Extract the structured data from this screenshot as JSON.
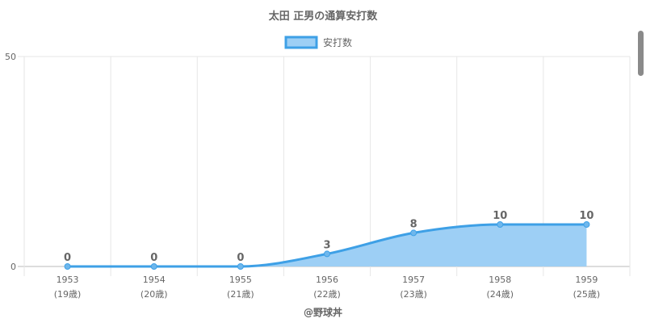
{
  "chart_data": {
    "type": "area",
    "title": "太田 正男の通算安打数",
    "legend": {
      "label": "安打数",
      "position": "top"
    },
    "categories": [
      "1953",
      "1954",
      "1955",
      "1956",
      "1957",
      "1958",
      "1959"
    ],
    "category_sublabels": [
      "(19歳)",
      "(20歳)",
      "(21歳)",
      "(22歳)",
      "(23歳)",
      "(24歳)",
      "(25歳)"
    ],
    "series": [
      {
        "name": "安打数",
        "values": [
          0,
          0,
          0,
          3,
          8,
          10,
          10
        ]
      }
    ],
    "y_ticks": [
      "0",
      "50"
    ],
    "ylim": [
      0,
      50
    ],
    "grid": true,
    "colors": {
      "line": "#3ea0e6",
      "fill": "#9dcff5",
      "point": "#6fb7ec"
    }
  },
  "footer": {
    "credit": "@野球丼"
  }
}
